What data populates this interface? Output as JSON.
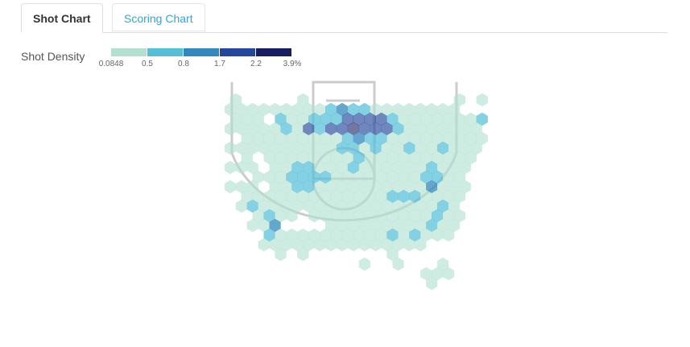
{
  "tabs": [
    {
      "label": "Shot Chart",
      "active": true
    },
    {
      "label": "Scoring Chart",
      "active": false
    }
  ],
  "legend": {
    "title": "Shot Density",
    "ticks": [
      "0.0848",
      "0.5",
      "0.8",
      "1.7",
      "2.2",
      "3.9%"
    ],
    "colors": [
      "#b2e0d0",
      "#55bfd8",
      "#3288bd",
      "#23479a",
      "#171d61"
    ]
  },
  "hex_density": {
    "rows": [
      [
        0,
        0,
        0,
        0,
        0,
        0,
        0,
        0,
        0,
        0,
        0,
        0,
        0,
        0,
        0,
        0,
        0,
        0,
        0,
        0,
        0,
        0,
        0
      ],
      [
        1,
        0,
        0,
        0,
        0,
        0,
        1,
        0,
        0,
        0,
        0,
        0,
        0,
        0,
        0,
        0,
        0,
        0,
        0,
        0,
        1,
        0,
        1
      ],
      [
        1,
        1,
        1,
        1,
        1,
        1,
        1,
        1,
        1,
        2,
        3,
        2,
        2,
        1,
        1,
        1,
        1,
        1,
        1,
        1,
        1,
        0
      ],
      [
        1,
        1,
        1,
        0,
        2,
        1,
        1,
        2,
        2,
        2,
        4,
        4,
        4,
        4,
        2,
        1,
        1,
        1,
        1,
        1,
        1,
        1,
        2
      ],
      [
        1,
        1,
        1,
        1,
        1,
        2,
        1,
        4,
        2,
        4,
        4,
        5,
        4,
        4,
        4,
        2,
        1,
        1,
        1,
        1,
        1,
        1,
        1
      ],
      [
        0,
        1,
        1,
        1,
        1,
        1,
        1,
        1,
        1,
        1,
        2,
        3,
        2,
        2,
        1,
        1,
        1,
        1,
        1,
        1,
        1,
        1,
        1
      ],
      [
        1,
        1,
        1,
        1,
        1,
        1,
        1,
        1,
        1,
        1,
        2,
        2,
        1,
        2,
        1,
        1,
        2,
        1,
        1,
        2,
        1,
        1,
        1
      ],
      [
        0,
        1,
        0,
        1,
        1,
        1,
        1,
        1,
        1,
        1,
        1,
        2,
        1,
        1,
        1,
        1,
        1,
        1,
        1,
        1,
        1,
        1,
        0
      ],
      [
        1,
        1,
        1,
        0,
        1,
        1,
        2,
        2,
        1,
        1,
        1,
        2,
        1,
        1,
        1,
        1,
        1,
        1,
        2,
        1,
        1,
        1,
        0
      ],
      [
        0,
        0,
        1,
        1,
        1,
        2,
        2,
        2,
        2,
        1,
        1,
        1,
        1,
        1,
        1,
        1,
        1,
        2,
        2,
        1,
        1,
        0,
        0
      ],
      [
        1,
        1,
        1,
        0,
        1,
        1,
        2,
        2,
        1,
        1,
        1,
        1,
        1,
        1,
        1,
        1,
        1,
        1,
        3,
        1,
        1,
        1,
        0
      ],
      [
        0,
        1,
        1,
        1,
        1,
        1,
        1,
        1,
        1,
        1,
        1,
        1,
        1,
        1,
        2,
        2,
        2,
        1,
        1,
        1,
        1,
        0,
        0
      ],
      [
        0,
        1,
        2,
        1,
        1,
        1,
        1,
        1,
        1,
        1,
        1,
        1,
        1,
        1,
        1,
        1,
        1,
        1,
        1,
        2,
        1,
        0,
        0
      ],
      [
        0,
        0,
        1,
        2,
        1,
        1,
        0,
        1,
        1,
        1,
        1,
        1,
        1,
        1,
        1,
        1,
        1,
        1,
        2,
        1,
        1,
        0,
        0
      ],
      [
        0,
        0,
        1,
        1,
        3,
        0,
        0,
        0,
        0,
        1,
        1,
        1,
        1,
        1,
        1,
        1,
        1,
        1,
        2,
        1,
        1,
        0,
        0
      ],
      [
        0,
        0,
        0,
        2,
        1,
        1,
        1,
        1,
        1,
        1,
        1,
        1,
        1,
        1,
        2,
        1,
        2,
        1,
        1,
        1,
        0,
        0,
        0
      ],
      [
        0,
        0,
        0,
        1,
        1,
        1,
        1,
        1,
        1,
        1,
        1,
        1,
        1,
        1,
        1,
        1,
        1,
        1,
        0,
        0,
        0,
        0,
        0
      ],
      [
        0,
        0,
        0,
        0,
        1,
        0,
        1,
        0,
        0,
        0,
        0,
        0,
        0,
        0,
        1,
        0,
        0,
        0,
        0,
        0,
        0,
        0,
        0
      ],
      [
        0,
        0,
        0,
        0,
        0,
        0,
        0,
        0,
        0,
        0,
        0,
        0,
        1,
        0,
        0,
        1,
        0,
        0,
        0,
        1,
        0,
        0,
        0
      ],
      [
        0,
        0,
        0,
        0,
        0,
        0,
        0,
        0,
        0,
        0,
        0,
        0,
        0,
        0,
        0,
        0,
        0,
        1,
        1,
        1,
        0,
        0,
        0
      ],
      [
        0,
        0,
        0,
        0,
        0,
        0,
        0,
        0,
        0,
        0,
        0,
        0,
        0,
        0,
        0,
        0,
        0,
        0,
        1,
        0,
        0,
        0,
        0
      ]
    ]
  }
}
